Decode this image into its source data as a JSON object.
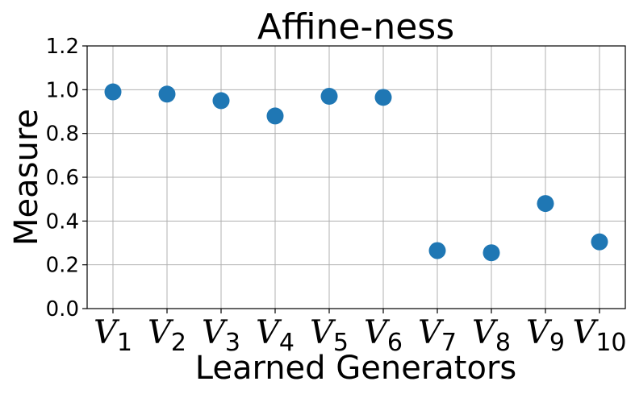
{
  "chart_data": {
    "type": "scatter",
    "title": "Affine-ness",
    "xlabel": "Learned Generators",
    "ylabel": "Measure",
    "categories": [
      {
        "main": "V",
        "sub": "1"
      },
      {
        "main": "V",
        "sub": "2"
      },
      {
        "main": "V",
        "sub": "3"
      },
      {
        "main": "V",
        "sub": "4"
      },
      {
        "main": "V",
        "sub": "5"
      },
      {
        "main": "V",
        "sub": "6"
      },
      {
        "main": "V",
        "sub": "7"
      },
      {
        "main": "V",
        "sub": "8"
      },
      {
        "main": "V",
        "sub": "9"
      },
      {
        "main": "V",
        "sub": "10"
      }
    ],
    "values": [
      0.99,
      0.98,
      0.95,
      0.88,
      0.97,
      0.965,
      0.265,
      0.255,
      0.48,
      0.305
    ],
    "ylim": [
      0,
      1.2
    ],
    "yticks": [
      "0.0",
      "0.2",
      "0.4",
      "0.6",
      "0.8",
      "1.0",
      "1.2"
    ],
    "grid": true,
    "marker_color": "#1f77b4"
  }
}
